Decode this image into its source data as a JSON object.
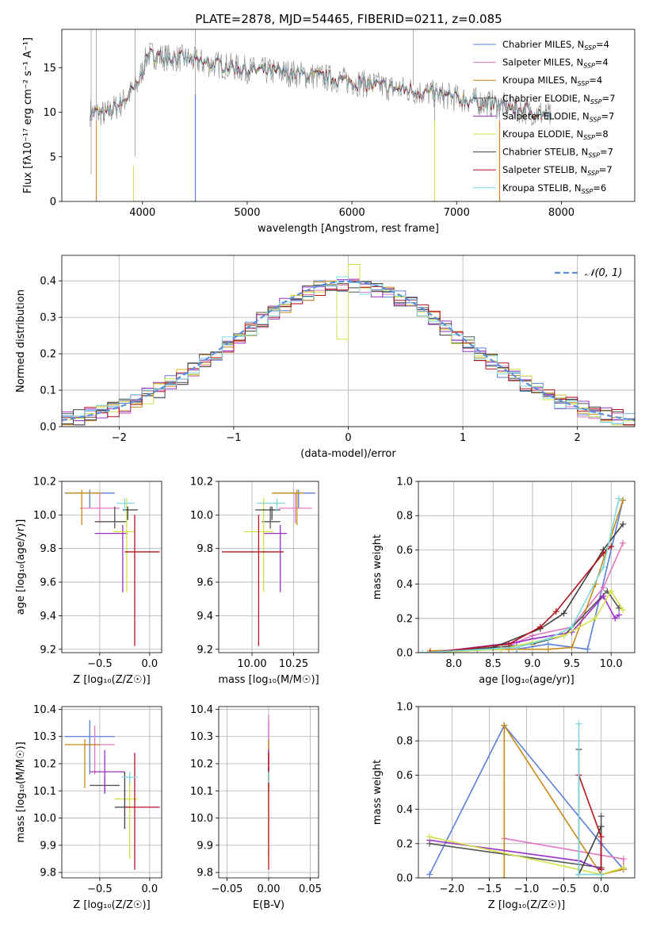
{
  "colors": {
    "Chabrier MILES": "#5b7fd9",
    "Salpeter MILES": "#e377c2",
    "Kroupa MILES": "#c88a19",
    "Chabrier ELODIE": "#555555",
    "Salpeter ELODIE": "#9b30c8",
    "Kroupa ELODIE": "#d4e04a",
    "Chabrier STELIB": "#404040",
    "Salpeter STELIB": "#b3141e",
    "Kroupa STELIB": "#7fd8e0",
    "orange": "#e07a1f"
  },
  "chart_data": [
    {
      "id": "spectrum",
      "type": "line",
      "title": "PLATE=2878, MJD=54465, FIBERID=0211, z=0.085",
      "xlabel": "wavelength [Angstrom, rest frame]",
      "ylabel": "Flux [fλ10⁻¹⁷ erg cm⁻² s⁻¹ A⁻¹]",
      "xlim": [
        3230,
        8700
      ],
      "ylim": [
        0,
        19.3
      ],
      "xticks": [
        4000,
        5000,
        6000,
        7000,
        8000
      ],
      "yticks": [
        0,
        5,
        10,
        15
      ],
      "grid": false,
      "legend_position": "top-right",
      "legend": [
        {
          "label": "Chabrier MILES, N",
          "sub": "SSP",
          "tail": "=4"
        },
        {
          "label": "Salpeter MILES, N",
          "sub": "SSP",
          "tail": "=4"
        },
        {
          "label": "Kroupa MILES, N",
          "sub": "SSP",
          "tail": "=4"
        },
        {
          "label": "Chabrier ELODIE, N",
          "sub": "SSP",
          "tail": "=7"
        },
        {
          "label": "Salpeter ELODIE, N",
          "sub": "SSP",
          "tail": "=7"
        },
        {
          "label": "Kroupa ELODIE, N",
          "sub": "SSP",
          "tail": "=8"
        },
        {
          "label": "Chabrier STELIB, N",
          "sub": "SSP",
          "tail": "=7"
        },
        {
          "label": "Salpeter STELIB, N",
          "sub": "SSP",
          "tail": "=7"
        },
        {
          "label": "Kroupa STELIB, N",
          "sub": "SSP",
          "tail": "=6"
        }
      ],
      "continuum": [
        [
          3500,
          10
        ],
        [
          3650,
          9.8
        ],
        [
          3800,
          11
        ],
        [
          3950,
          13
        ],
        [
          4050,
          16.5
        ],
        [
          4200,
          16.2
        ],
        [
          4400,
          16
        ],
        [
          4600,
          15.5
        ],
        [
          4800,
          15.2
        ],
        [
          5000,
          14.8
        ],
        [
          5200,
          14.6
        ],
        [
          5400,
          14.4
        ],
        [
          5600,
          14.1
        ],
        [
          5800,
          13.8
        ],
        [
          6000,
          13.4
        ],
        [
          6200,
          13.1
        ],
        [
          6400,
          12.7
        ],
        [
          6600,
          12.4
        ],
        [
          6800,
          12.0
        ],
        [
          7000,
          11.6
        ],
        [
          7200,
          11.2
        ],
        [
          7400,
          10.8
        ],
        [
          7600,
          10.3
        ],
        [
          7800,
          9.9
        ],
        [
          7900,
          9.4
        ]
      ]
    },
    {
      "id": "residuals",
      "type": "histogram",
      "xlabel": "(data-model)/error",
      "ylabel": "Normed distribution",
      "xlim": [
        -2.5,
        2.5
      ],
      "ylim": [
        0,
        0.47
      ],
      "xticks": [
        -2,
        -1,
        0,
        1,
        2
      ],
      "yticks": [
        0.0,
        0.1,
        0.2,
        0.3,
        0.4
      ],
      "grid": true,
      "legend": [
        {
          "label": "𝒩(0, 1)"
        }
      ],
      "legend_position": "top-right"
    },
    {
      "id": "age-vs-z",
      "type": "errorbar",
      "xlabel": "Z [log₁₀(Z/Z☉)]",
      "ylabel": "age  [log₁₀(age/yr)]",
      "xlim": [
        -0.88,
        0.12
      ],
      "ylim": [
        9.18,
        10.2
      ],
      "xticks": [
        -0.5,
        0.0
      ],
      "yticks": [
        9.2,
        9.4,
        9.6,
        9.8,
        10.0,
        10.2
      ],
      "grid": true,
      "points": [
        {
          "model": "Chabrier MILES",
          "x": -0.6,
          "xerr": [
            0.25,
            0.25
          ],
          "y": 10.13,
          "yerr": [
            0.09,
            0.02
          ]
        },
        {
          "model": "Salpeter MILES",
          "x": -0.5,
          "xerr": [
            0.2,
            0.2
          ],
          "y": 10.04,
          "yerr": [
            0.09,
            0.09
          ]
        },
        {
          "model": "Kroupa MILES",
          "x": -0.68,
          "xerr": [
            0.16,
            0.2
          ],
          "y": 10.13,
          "yerr": [
            0.19,
            0.02
          ]
        },
        {
          "model": "Chabrier ELODIE",
          "x": -0.35,
          "xerr": [
            0.2,
            0.12
          ],
          "y": 9.96,
          "yerr": [
            0.04,
            0.09
          ]
        },
        {
          "model": "Salpeter ELODIE",
          "x": -0.27,
          "xerr": [
            0.28,
            0.05
          ],
          "y": 9.89,
          "yerr": [
            0.35,
            0.05
          ]
        },
        {
          "model": "Kroupa ELODIE",
          "x": -0.23,
          "xerr": [
            0.14,
            0.08
          ],
          "y": 9.9,
          "yerr": [
            0.36,
            0.2
          ]
        },
        {
          "model": "Chabrier STELIB",
          "x": -0.22,
          "xerr": [
            0.05,
            0.1
          ],
          "y": 10.03,
          "yerr": [
            0.06,
            0.02
          ]
        },
        {
          "model": "Salpeter STELIB",
          "x": -0.15,
          "xerr": [
            0.1,
            0.25
          ],
          "y": 9.78,
          "yerr": [
            0.56,
            0.22
          ]
        },
        {
          "model": "Kroupa STELIB",
          "x": -0.25,
          "xerr": [
            0.08,
            0.1
          ],
          "y": 10.07,
          "yerr": [
            0.05,
            0.03
          ]
        }
      ]
    },
    {
      "id": "age-vs-mass",
      "type": "errorbar",
      "xlabel": "mass [log₁₀(M/M☉)]",
      "ylabel": "",
      "xlim": [
        9.8,
        10.4
      ],
      "ylim": [
        9.18,
        10.2
      ],
      "xticks": [
        10.0,
        10.25
      ],
      "yticks": [
        9.2,
        9.4,
        9.6,
        9.8,
        10.0,
        10.2
      ],
      "grid": true,
      "points": [
        {
          "model": "Chabrier MILES",
          "x": 10.28,
          "xerr": [
            0.1,
            0.1
          ],
          "y": 10.13,
          "yerr": [
            0.09,
            0.02
          ]
        },
        {
          "model": "Salpeter MILES",
          "x": 10.26,
          "xerr": [
            0.1,
            0.1
          ],
          "y": 10.04,
          "yerr": [
            0.09,
            0.09
          ]
        },
        {
          "model": "Kroupa MILES",
          "x": 10.27,
          "xerr": [
            0.15,
            0.04
          ],
          "y": 10.13,
          "yerr": [
            0.19,
            0.02
          ]
        },
        {
          "model": "Chabrier ELODIE",
          "x": 10.11,
          "xerr": [
            0.05,
            0.06
          ],
          "y": 9.96,
          "yerr": [
            0.04,
            0.09
          ]
        },
        {
          "model": "Salpeter ELODIE",
          "x": 10.17,
          "xerr": [
            0.1,
            0.04
          ],
          "y": 9.89,
          "yerr": [
            0.35,
            0.05
          ]
        },
        {
          "model": "Kroupa ELODIE",
          "x": 10.07,
          "xerr": [
            0.12,
            0.06
          ],
          "y": 9.9,
          "yerr": [
            0.36,
            0.2
          ]
        },
        {
          "model": "Chabrier STELIB",
          "x": 10.12,
          "xerr": [
            0.1,
            0.05
          ],
          "y": 10.03,
          "yerr": [
            0.06,
            0.02
          ]
        },
        {
          "model": "Salpeter STELIB",
          "x": 10.04,
          "xerr": [
            0.22,
            0.15
          ],
          "y": 9.78,
          "yerr": [
            0.56,
            0.22
          ]
        },
        {
          "model": "Kroupa STELIB",
          "x": 10.15,
          "xerr": [
            0.12,
            0.05
          ],
          "y": 10.07,
          "yerr": [
            0.05,
            0.03
          ]
        }
      ]
    },
    {
      "id": "weight-vs-age",
      "type": "line",
      "xlabel": "age  [log₁₀(age/yr)]",
      "ylabel": "mass weight",
      "xlim": [
        7.55,
        10.3
      ],
      "ylim": [
        0,
        1.0
      ],
      "xticks": [
        8.0,
        8.5,
        9.0,
        9.5,
        10.0
      ],
      "yticks": [
        0.0,
        0.2,
        0.4,
        0.6,
        0.8,
        1.0
      ],
      "grid": true,
      "series": [
        {
          "model": "Chabrier MILES",
          "x": [
            7.7,
            8.3,
            8.8,
            9.2,
            9.7,
            10.15
          ],
          "y": [
            0.0,
            0.02,
            0.02,
            0.05,
            0.02,
            0.89
          ]
        },
        {
          "model": "Salpeter MILES",
          "x": [
            7.7,
            8.6,
            9.0,
            9.5,
            9.9,
            10.15
          ],
          "y": [
            0.01,
            0.02,
            0.1,
            0.15,
            0.38,
            0.64
          ]
        },
        {
          "model": "Kroupa MILES",
          "x": [
            7.7,
            8.7,
            9.2,
            9.5,
            9.8,
            10.15
          ],
          "y": [
            0.01,
            0.02,
            0.02,
            0.03,
            0.4,
            0.89
          ]
        },
        {
          "model": "Chabrier ELODIE",
          "x": [
            7.7,
            8.5,
            9.0,
            9.4,
            9.95,
            10.1
          ],
          "y": [
            0.0,
            0.03,
            0.05,
            0.1,
            0.36,
            0.26
          ]
        },
        {
          "model": "Salpeter ELODIE",
          "x": [
            7.7,
            8.8,
            9.0,
            9.5,
            9.9,
            10.05,
            10.1
          ],
          "y": [
            0.0,
            0.06,
            0.08,
            0.12,
            0.33,
            0.2,
            0.22
          ]
        },
        {
          "model": "Kroupa ELODIE",
          "x": [
            7.7,
            8.6,
            9.0,
            9.4,
            9.8,
            10.0,
            10.15
          ],
          "y": [
            0.0,
            0.02,
            0.06,
            0.1,
            0.2,
            0.36,
            0.25
          ]
        },
        {
          "model": "Chabrier STELIB",
          "x": [
            7.7,
            8.5,
            9.1,
            9.4,
            9.9,
            10.15
          ],
          "y": [
            0.0,
            0.03,
            0.14,
            0.23,
            0.6,
            0.75
          ]
        },
        {
          "model": "Salpeter STELIB",
          "x": [
            7.7,
            8.7,
            9.1,
            9.3,
            9.9,
            10.0
          ],
          "y": [
            0.0,
            0.05,
            0.15,
            0.24,
            0.58,
            0.62
          ]
        },
        {
          "model": "Kroupa STELIB",
          "x": [
            7.6,
            8.8,
            9.2,
            9.5,
            9.9,
            10.1
          ],
          "y": [
            0.0,
            0.03,
            0.08,
            0.15,
            0.5,
            0.9
          ]
        }
      ]
    },
    {
      "id": "mass-vs-z",
      "type": "errorbar",
      "xlabel": "Z [log₁₀(Z/Z☉)]",
      "ylabel": "mass [log₁₀(M/M☉)]",
      "xlim": [
        -0.88,
        0.12
      ],
      "ylim": [
        9.78,
        10.41
      ],
      "xticks": [
        -0.5,
        0.0
      ],
      "yticks": [
        9.8,
        9.9,
        10.0,
        10.1,
        10.2,
        10.3,
        10.4
      ],
      "grid": true,
      "points": [
        {
          "model": "Chabrier MILES",
          "x": -0.6,
          "xerr": [
            0.25,
            0.25
          ],
          "y": 10.3,
          "yerr": [
            0.14,
            0.06
          ]
        },
        {
          "model": "Salpeter MILES",
          "x": -0.55,
          "xerr": [
            0.1,
            0.2
          ],
          "y": 10.27,
          "yerr": [
            0.11,
            0.07
          ]
        },
        {
          "model": "Kroupa MILES",
          "x": -0.65,
          "xerr": [
            0.2,
            0.15
          ],
          "y": 10.27,
          "yerr": [
            0.16,
            0.02
          ]
        },
        {
          "model": "Chabrier ELODIE",
          "x": -0.45,
          "xerr": [
            0.15,
            0.15
          ],
          "y": 10.12,
          "yerr": [
            0.03,
            0.03
          ]
        },
        {
          "model": "Salpeter ELODIE",
          "x": -0.45,
          "xerr": [
            0.15,
            0.2
          ],
          "y": 10.17,
          "yerr": [
            0.08,
            0.08
          ]
        },
        {
          "model": "Kroupa ELODIE",
          "x": -0.2,
          "xerr": [
            0.15,
            0.08
          ],
          "y": 10.07,
          "yerr": [
            0.22,
            0.1
          ]
        },
        {
          "model": "Chabrier STELIB",
          "x": -0.25,
          "xerr": [
            0.1,
            0.05
          ],
          "y": 10.04,
          "yerr": [
            0.08,
            0.13
          ]
        },
        {
          "model": "Salpeter STELIB",
          "x": -0.15,
          "xerr": [
            0.1,
            0.25
          ],
          "y": 10.04,
          "yerr": [
            0.23,
            0.2
          ]
        },
        {
          "model": "Kroupa STELIB",
          "x": -0.2,
          "xerr": [
            0.08,
            0.08
          ],
          "y": 10.15,
          "yerr": [
            0.02,
            0.02
          ]
        }
      ]
    },
    {
      "id": "mass-vs-ebv",
      "type": "errorbar",
      "xlabel": "E(B-V)",
      "ylabel": "",
      "xlim": [
        -0.06,
        0.06
      ],
      "ylim": [
        9.78,
        10.41
      ],
      "xticks": [
        -0.05,
        0.0,
        0.05
      ],
      "yticks": [
        9.8,
        9.9,
        10.0,
        10.1,
        10.2,
        10.3,
        10.4
      ],
      "grid": true,
      "points": [
        {
          "model": "Chabrier MILES",
          "x": 0.0,
          "y": 10.3,
          "yerr": [
            0.14,
            0.06
          ]
        },
        {
          "model": "Salpeter MILES",
          "x": 0.0,
          "y": 10.27,
          "yerr": [
            0.11,
            0.11
          ]
        },
        {
          "model": "Kroupa MILES",
          "x": 0.0,
          "y": 10.27,
          "yerr": [
            0.16,
            0.02
          ]
        },
        {
          "model": "Salpeter ELODIE",
          "x": 0.0,
          "y": 10.17,
          "yerr": [
            0.08,
            0.08
          ]
        },
        {
          "model": "Kroupa ELODIE",
          "x": 0.0,
          "y": 10.07,
          "yerr": [
            0.22,
            0.1
          ]
        },
        {
          "model": "Salpeter STELIB",
          "x": 0.0,
          "y": 10.04,
          "yerr": [
            0.23,
            0.2
          ]
        },
        {
          "model": "Kroupa STELIB",
          "x": 0.0,
          "y": 10.15,
          "yerr": [
            0.02,
            0.02
          ]
        }
      ]
    },
    {
      "id": "weight-vs-z",
      "type": "line",
      "xlabel": "Z [log₁₀(Z/Z☉)]",
      "ylabel": "mass weight",
      "xlim": [
        -2.45,
        0.45
      ],
      "ylim": [
        0,
        1.0
      ],
      "xticks": [
        -2.0,
        -1.5,
        -1.0,
        -0.5,
        0.0
      ],
      "yticks": [
        0.0,
        0.2,
        0.4,
        0.6,
        0.8,
        1.0
      ],
      "grid": true,
      "series": [
        {
          "model": "Chabrier MILES",
          "x": [
            -2.3,
            -1.3,
            0.0,
            0.3
          ],
          "y": [
            0.02,
            0.89,
            0.2,
            0.05
          ]
        },
        {
          "model": "Salpeter MILES",
          "x": [
            -1.3,
            0.3,
            0.3
          ],
          "y": [
            0.23,
            0.11,
            0.05
          ]
        },
        {
          "model": "Kroupa MILES",
          "x": [
            -1.3,
            -1.3,
            0.0,
            0.3
          ],
          "y": [
            0.0,
            0.89,
            0.02,
            0.05
          ]
        },
        {
          "model": "Chabrier ELODIE",
          "x": [
            -2.3,
            0.0,
            0.0
          ],
          "y": [
            0.2,
            0.06,
            0.36
          ]
        },
        {
          "model": "Salpeter ELODIE",
          "x": [
            -2.3,
            -0.3,
            0.0
          ],
          "y": [
            0.22,
            0.1,
            0.05
          ]
        },
        {
          "model": "Kroupa ELODIE",
          "x": [
            -2.3,
            0.0,
            0.3
          ],
          "y": [
            0.24,
            0.02,
            0.06
          ]
        },
        {
          "model": "Chabrier STELIB",
          "x": [
            -0.3,
            -0.3,
            0.0,
            0.0
          ],
          "y": [
            0.75,
            0.02,
            0.3,
            0.02
          ]
        },
        {
          "model": "Salpeter STELIB",
          "x": [
            -0.3,
            0.0,
            0.0
          ],
          "y": [
            0.6,
            0.24,
            0.05
          ]
        },
        {
          "model": "Kroupa STELIB",
          "x": [
            -0.3,
            -0.3,
            0.0
          ],
          "y": [
            0.9,
            0.02,
            0.02
          ]
        }
      ]
    }
  ]
}
